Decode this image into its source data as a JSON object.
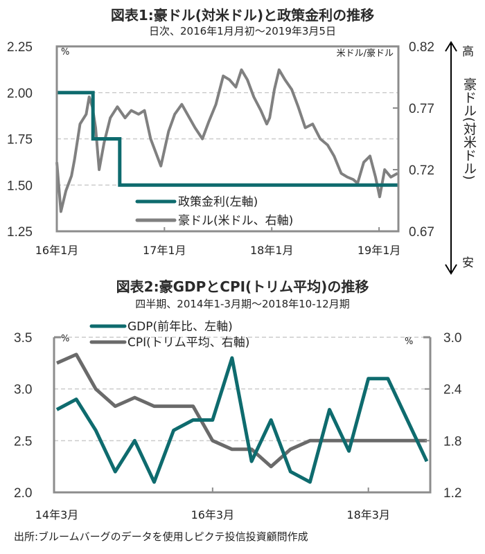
{
  "colors": {
    "teal": "#0e6b6e",
    "gray": "#808080",
    "darkgray": "#6a6a6a",
    "grid": "#cccccc",
    "frame": "#8c8c8c"
  },
  "source": "出所:ブルームバーグのデータを使用しピクテ投信投資顧問作成",
  "chart_data": [
    {
      "type": "line",
      "title": "図表1:豪ドル(対米ドル)と政策金利の推移",
      "subtitle": "日次、2016年1月月初〜2019年3月5日",
      "left_unit": "%",
      "right_unit": "米ドル/豪ドル",
      "right_axis_annotation": {
        "top": "高",
        "label": "豪ドル(対米ドル)",
        "bottom": "安"
      },
      "ylim_left": [
        1.25,
        2.25
      ],
      "ylim_right": [
        0.67,
        0.82
      ],
      "yticks_left": [
        "2.25",
        "2.00",
        "1.75",
        "1.50",
        "1.25"
      ],
      "yticks_right": [
        "0.82",
        "0.77",
        "0.72",
        "0.67"
      ],
      "xticks": [
        "16年1月",
        "17年1月",
        "18年1月",
        "19年1月"
      ],
      "xrange": [
        "2016-01-01",
        "2019-03-05"
      ],
      "grid": true,
      "legend_position": "bottom-center",
      "series": [
        {
          "name": "政策金利(左軸)",
          "axis": "left",
          "color": "teal",
          "step": true,
          "points": [
            [
              "2016-01-01",
              2.0
            ],
            [
              "2016-05-03",
              2.0
            ],
            [
              "2016-05-03",
              1.75
            ],
            [
              "2016-08-02",
              1.75
            ],
            [
              "2016-08-02",
              1.5
            ],
            [
              "2019-03-05",
              1.5
            ]
          ]
        },
        {
          "name": "豪ドル(米ドル、右軸)",
          "axis": "right",
          "color": "gray",
          "points": [
            [
              "2016-01-01",
              0.726
            ],
            [
              "2016-01-15",
              0.686
            ],
            [
              "2016-02-01",
              0.703
            ],
            [
              "2016-02-20",
              0.715
            ],
            [
              "2016-03-01",
              0.728
            ],
            [
              "2016-03-20",
              0.757
            ],
            [
              "2016-04-10",
              0.765
            ],
            [
              "2016-04-20",
              0.779
            ],
            [
              "2016-05-01",
              0.771
            ],
            [
              "2016-05-12",
              0.754
            ],
            [
              "2016-05-24",
              0.72
            ],
            [
              "2016-06-10",
              0.742
            ],
            [
              "2016-07-01",
              0.762
            ],
            [
              "2016-07-25",
              0.771
            ],
            [
              "2016-08-20",
              0.762
            ],
            [
              "2016-09-10",
              0.768
            ],
            [
              "2016-10-05",
              0.765
            ],
            [
              "2016-10-25",
              0.768
            ],
            [
              "2016-11-15",
              0.745
            ],
            [
              "2016-12-20",
              0.723
            ],
            [
              "2017-01-15",
              0.751
            ],
            [
              "2017-02-05",
              0.765
            ],
            [
              "2017-03-01",
              0.773
            ],
            [
              "2017-03-20",
              0.765
            ],
            [
              "2017-04-15",
              0.754
            ],
            [
              "2017-05-10",
              0.745
            ],
            [
              "2017-06-01",
              0.759
            ],
            [
              "2017-06-25",
              0.773
            ],
            [
              "2017-07-20",
              0.796
            ],
            [
              "2017-08-10",
              0.793
            ],
            [
              "2017-09-01",
              0.787
            ],
            [
              "2017-09-20",
              0.801
            ],
            [
              "2017-10-10",
              0.793
            ],
            [
              "2017-11-01",
              0.779
            ],
            [
              "2017-11-25",
              0.768
            ],
            [
              "2017-12-15",
              0.757
            ],
            [
              "2017-12-25",
              0.762
            ],
            [
              "2018-01-10",
              0.785
            ],
            [
              "2018-01-26",
              0.801
            ],
            [
              "2018-02-15",
              0.793
            ],
            [
              "2018-03-10",
              0.785
            ],
            [
              "2018-04-01",
              0.771
            ],
            [
              "2018-04-25",
              0.754
            ],
            [
              "2018-05-20",
              0.757
            ],
            [
              "2018-06-15",
              0.745
            ],
            [
              "2018-07-10",
              0.74
            ],
            [
              "2018-08-01",
              0.731
            ],
            [
              "2018-08-25",
              0.717
            ],
            [
              "2018-09-15",
              0.714
            ],
            [
              "2018-10-05",
              0.712
            ],
            [
              "2018-10-20",
              0.709
            ],
            [
              "2018-11-10",
              0.726
            ],
            [
              "2018-12-01",
              0.731
            ],
            [
              "2018-12-20",
              0.714
            ],
            [
              "2019-01-03",
              0.698
            ],
            [
              "2019-01-20",
              0.72
            ],
            [
              "2019-02-10",
              0.714
            ],
            [
              "2019-03-05",
              0.717
            ]
          ]
        }
      ]
    },
    {
      "type": "line",
      "title": "図表2:豪GDPとCPI(トリム平均)の推移",
      "subtitle": "四半期、2014年1-3月期〜2018年10-12月期",
      "left_unit": "%",
      "right_unit": "%",
      "ylim_left": [
        2.0,
        3.5
      ],
      "ylim_right": [
        1.2,
        3.0
      ],
      "yticks_left": [
        "3.5",
        "3.0",
        "2.5",
        "2.0"
      ],
      "yticks_right": [
        "3.0",
        "2.4",
        "1.8",
        "1.2"
      ],
      "xticks": [
        "14年3月",
        "16年3月",
        "18年3月"
      ],
      "x": [
        "14Q1",
        "14Q2",
        "14Q3",
        "14Q4",
        "15Q1",
        "15Q2",
        "15Q3",
        "15Q4",
        "16Q1",
        "16Q2",
        "16Q3",
        "16Q4",
        "17Q1",
        "17Q2",
        "17Q3",
        "17Q4",
        "18Q1",
        "18Q2",
        "18Q3",
        "18Q4"
      ],
      "grid": true,
      "legend_position": "top-left",
      "series": [
        {
          "name": "GDP(前年比、左軸)",
          "axis": "left",
          "color": "teal",
          "values": [
            2.8,
            2.9,
            2.6,
            2.2,
            2.5,
            2.1,
            2.6,
            2.7,
            2.7,
            3.3,
            2.3,
            2.7,
            2.2,
            2.1,
            2.8,
            2.4,
            3.1,
            3.1,
            2.7,
            2.3
          ]
        },
        {
          "name": "CPI(トリム平均、右軸)",
          "axis": "right",
          "color": "darkgray",
          "values": [
            2.7,
            2.8,
            2.4,
            2.2,
            2.3,
            2.2,
            2.2,
            2.2,
            1.8,
            1.7,
            1.7,
            1.5,
            1.7,
            1.8,
            1.8,
            1.8,
            1.8,
            1.8,
            1.8,
            1.8
          ]
        }
      ]
    }
  ]
}
